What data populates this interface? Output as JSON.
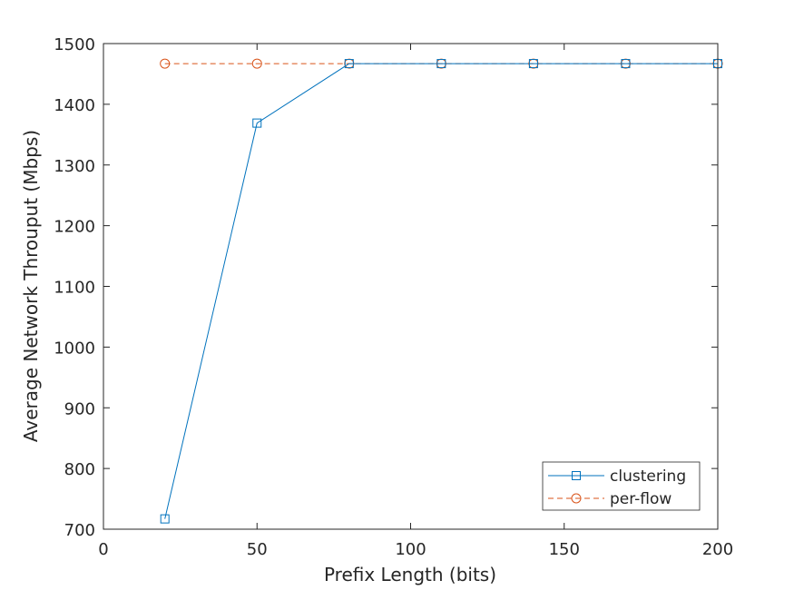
{
  "chart_data": {
    "type": "line",
    "title": "",
    "xlabel": "Prefix Length (bits)",
    "ylabel": "Average Network Throuput (Mbps)",
    "xlim": [
      0,
      200
    ],
    "ylim": [
      700,
      1500
    ],
    "xticks": [
      0,
      50,
      100,
      150,
      200
    ],
    "yticks": [
      700,
      800,
      900,
      1000,
      1100,
      1200,
      1300,
      1400,
      1500
    ],
    "grid": false,
    "legend_position": "bottom-right",
    "series": [
      {
        "name": "clustering",
        "color": "#0072BD",
        "marker": "square",
        "line_style": "solid",
        "x": [
          20,
          50,
          80,
          110,
          140,
          170,
          200
        ],
        "y": [
          717,
          1369,
          1467,
          1467,
          1467,
          1467,
          1467
        ]
      },
      {
        "name": "per-flow",
        "color": "#D95319",
        "marker": "circle",
        "line_style": "dashed",
        "x": [
          20,
          50,
          80,
          110,
          140,
          170,
          200
        ],
        "y": [
          1467,
          1467,
          1467,
          1467,
          1467,
          1467,
          1467
        ]
      }
    ]
  }
}
